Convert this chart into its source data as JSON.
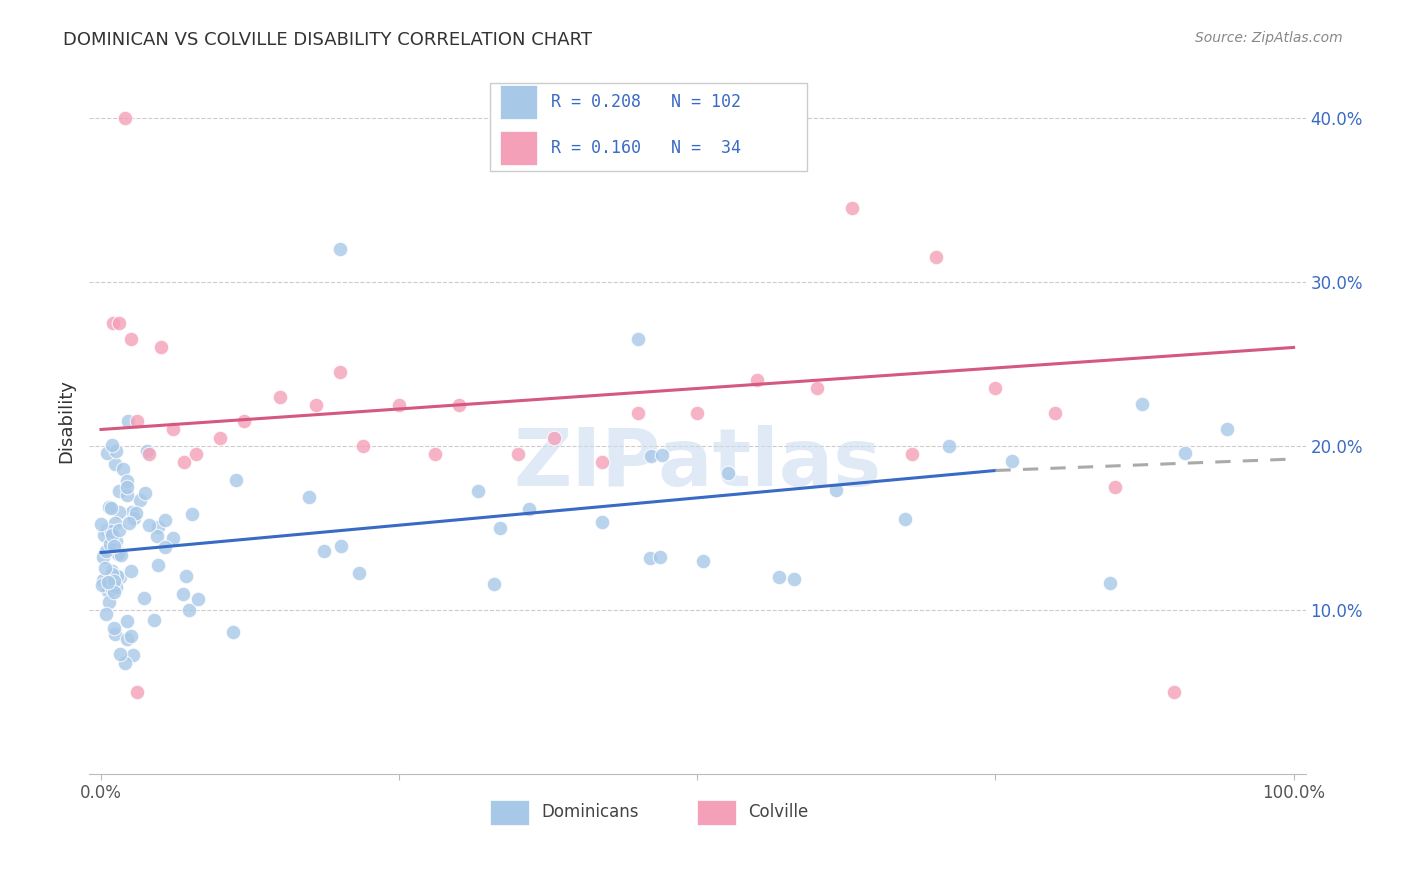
{
  "title": "DOMINICAN VS COLVILLE DISABILITY CORRELATION CHART",
  "source": "Source: ZipAtlas.com",
  "ylabel": "Disability",
  "legend_dominicans": "Dominicans",
  "legend_colville": "Colville",
  "R_dominicans": 0.208,
  "N_dominicans": 102,
  "R_colville": 0.16,
  "N_colville": 34,
  "color_dominicans": "#a8c8e8",
  "color_colville": "#f4a0b8",
  "line_color_blue": "#3a6bc4",
  "line_color_pink": "#d45880",
  "line_color_dash": "#aaaaaa",
  "watermark": "ZIPatlas",
  "watermark_color": "#ccddf0",
  "xlim": [
    0,
    100
  ],
  "ylim": [
    0,
    42
  ],
  "ytick_positions": [
    10,
    20,
    30,
    40
  ],
  "ytick_labels": [
    "10.0%",
    "20.0%",
    "30.0%",
    "40.0%"
  ],
  "xtick_labels_left": "0.0%",
  "xtick_labels_right": "100.0%",
  "grid_color": "#cccccc",
  "background_color": "#ffffff",
  "title_fontsize": 13,
  "source_fontsize": 10,
  "tick_fontsize": 12
}
